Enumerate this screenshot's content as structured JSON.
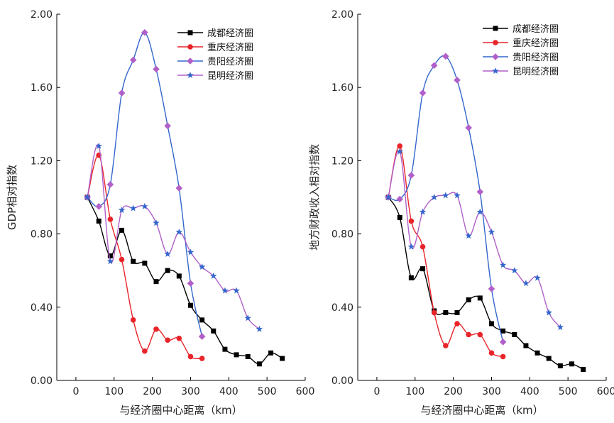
{
  "chart_data": [
    {
      "type": "line",
      "title": "",
      "xlabel": "与经济圈中心距离（km）",
      "ylabel": "GDP相对指数",
      "xlim": [
        -50,
        600
      ],
      "ylim": [
        0,
        2
      ],
      "xticks": [
        "0",
        "100",
        "200",
        "300",
        "400",
        "500",
        "600"
      ],
      "yticks": [
        "0.00",
        "0.40",
        "0.80",
        "1.20",
        "1.60",
        "2.00"
      ],
      "grid": false,
      "legend": "top-right",
      "series": [
        {
          "name": "成都经济圈",
          "color": "#000000",
          "marker": "square",
          "points": [
            [
              30,
              1.0
            ],
            [
              60,
              0.87
            ],
            [
              90,
              0.68
            ],
            [
              120,
              0.82
            ],
            [
              150,
              0.65
            ],
            [
              180,
              0.64
            ],
            [
              210,
              0.54
            ],
            [
              240,
              0.6
            ],
            [
              270,
              0.57
            ],
            [
              300,
              0.41
            ],
            [
              330,
              0.33
            ],
            [
              360,
              0.27
            ],
            [
              390,
              0.17
            ],
            [
              420,
              0.14
            ],
            [
              450,
              0.13
            ],
            [
              480,
              0.09
            ],
            [
              510,
              0.15
            ],
            [
              540,
              0.12
            ]
          ]
        },
        {
          "name": "重庆经济圈",
          "color": "#e8242a",
          "marker": "circle",
          "points": [
            [
              30,
              1.0
            ],
            [
              60,
              1.23
            ],
            [
              90,
              0.88
            ],
            [
              120,
              0.66
            ],
            [
              150,
              0.33
            ],
            [
              180,
              0.16
            ],
            [
              210,
              0.28
            ],
            [
              240,
              0.22
            ],
            [
              270,
              0.23
            ],
            [
              300,
              0.13
            ],
            [
              330,
              0.12
            ]
          ]
        },
        {
          "name": "贵阳经济圈",
          "color": "#3366cc",
          "marker": "diamond",
          "marker_color": "#b15fc9",
          "points": [
            [
              30,
              1.0
            ],
            [
              60,
              0.95
            ],
            [
              90,
              1.07
            ],
            [
              120,
              1.57
            ],
            [
              150,
              1.75
            ],
            [
              180,
              1.9
            ],
            [
              210,
              1.7
            ],
            [
              240,
              1.39
            ],
            [
              270,
              1.05
            ],
            [
              300,
              0.53
            ],
            [
              330,
              0.24
            ]
          ]
        },
        {
          "name": "昆明经济圈",
          "color": "#b15fc9",
          "marker": "star",
          "marker_color": "#3366cc",
          "points": [
            [
              30,
              1.0
            ],
            [
              60,
              1.28
            ],
            [
              90,
              0.65
            ],
            [
              120,
              0.93
            ],
            [
              150,
              0.94
            ],
            [
              180,
              0.95
            ],
            [
              210,
              0.86
            ],
            [
              240,
              0.69
            ],
            [
              270,
              0.81
            ],
            [
              300,
              0.7
            ],
            [
              330,
              0.62
            ],
            [
              360,
              0.57
            ],
            [
              390,
              0.49
            ],
            [
              420,
              0.49
            ],
            [
              450,
              0.34
            ],
            [
              480,
              0.28
            ]
          ]
        }
      ]
    },
    {
      "type": "line",
      "title": "",
      "xlabel": "与经济圈中心距离（km）",
      "ylabel": "地方财政收入相对指数",
      "xlim": [
        -50,
        600
      ],
      "ylim": [
        0,
        2
      ],
      "xticks": [
        "0",
        "100",
        "200",
        "300",
        "400",
        "500",
        "600"
      ],
      "yticks": [
        "0.00",
        "0.40",
        "0.80",
        "1.20",
        "1.60",
        "2.00"
      ],
      "grid": false,
      "legend": "top-right",
      "series": [
        {
          "name": "成都经济圈",
          "color": "#000000",
          "marker": "square",
          "points": [
            [
              30,
              1.0
            ],
            [
              60,
              0.89
            ],
            [
              90,
              0.56
            ],
            [
              120,
              0.61
            ],
            [
              150,
              0.38
            ],
            [
              180,
              0.37
            ],
            [
              210,
              0.37
            ],
            [
              240,
              0.44
            ],
            [
              270,
              0.45
            ],
            [
              300,
              0.31
            ],
            [
              330,
              0.27
            ],
            [
              360,
              0.25
            ],
            [
              390,
              0.19
            ],
            [
              420,
              0.15
            ],
            [
              450,
              0.12
            ],
            [
              480,
              0.08
            ],
            [
              510,
              0.09
            ],
            [
              540,
              0.06
            ]
          ]
        },
        {
          "name": "重庆经济圈",
          "color": "#e8242a",
          "marker": "circle",
          "points": [
            [
              30,
              1.0
            ],
            [
              60,
              1.28
            ],
            [
              90,
              0.87
            ],
            [
              120,
              0.73
            ],
            [
              150,
              0.37
            ],
            [
              180,
              0.19
            ],
            [
              210,
              0.31
            ],
            [
              240,
              0.25
            ],
            [
              270,
              0.25
            ],
            [
              300,
              0.15
            ],
            [
              330,
              0.13
            ]
          ]
        },
        {
          "name": "贵阳经济圈",
          "color": "#3366cc",
          "marker": "diamond",
          "marker_color": "#b15fc9",
          "points": [
            [
              30,
              1.0
            ],
            [
              60,
              0.99
            ],
            [
              90,
              1.12
            ],
            [
              120,
              1.57
            ],
            [
              150,
              1.72
            ],
            [
              180,
              1.77
            ],
            [
              210,
              1.64
            ],
            [
              240,
              1.38
            ],
            [
              270,
              1.03
            ],
            [
              300,
              0.5
            ],
            [
              330,
              0.21
            ]
          ]
        },
        {
          "name": "昆明经济圈",
          "color": "#b15fc9",
          "marker": "star",
          "marker_color": "#3366cc",
          "points": [
            [
              30,
              1.0
            ],
            [
              60,
              1.25
            ],
            [
              90,
              0.73
            ],
            [
              120,
              0.92
            ],
            [
              150,
              1.0
            ],
            [
              180,
              1.01
            ],
            [
              210,
              1.01
            ],
            [
              240,
              0.79
            ],
            [
              270,
              0.92
            ],
            [
              300,
              0.81
            ],
            [
              330,
              0.63
            ],
            [
              360,
              0.6
            ],
            [
              390,
              0.53
            ],
            [
              420,
              0.56
            ],
            [
              450,
              0.37
            ],
            [
              480,
              0.29
            ]
          ]
        }
      ]
    }
  ]
}
